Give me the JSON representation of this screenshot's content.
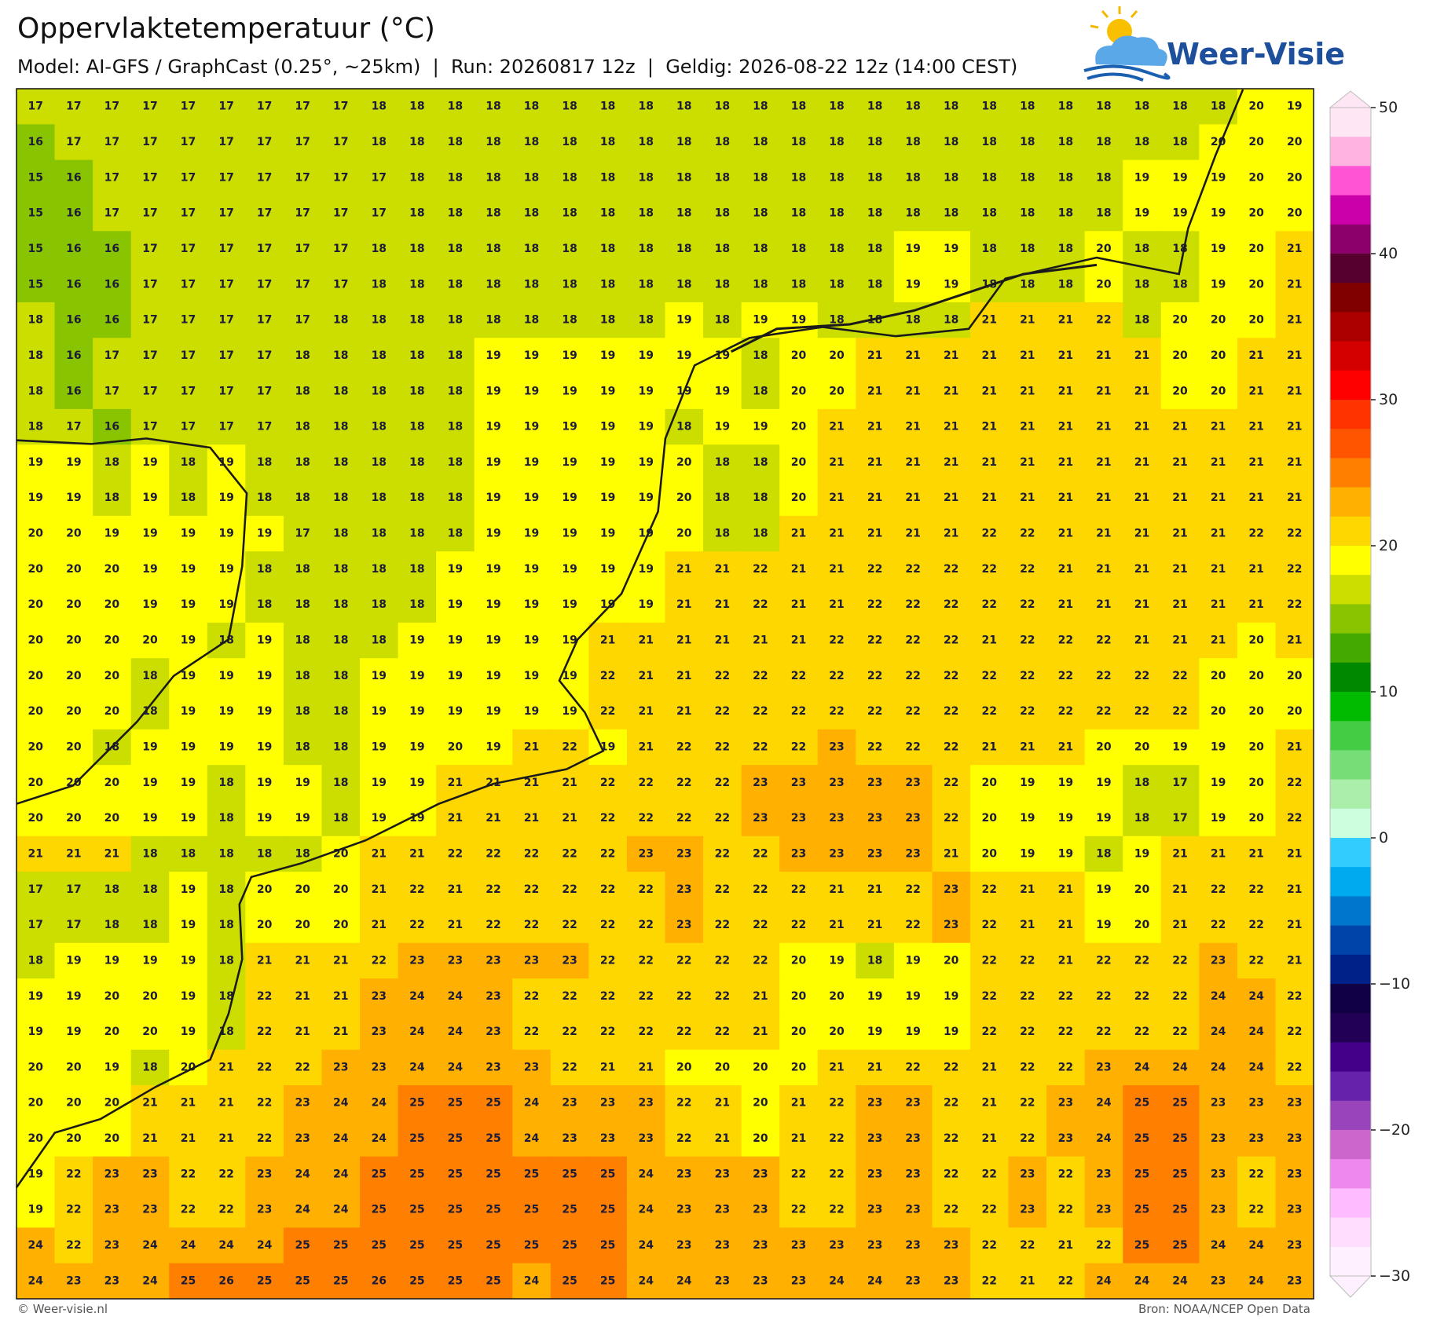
{
  "header": {
    "title": "Oppervlaktetemperatuur (°C)",
    "subtitle": "Model: AI-GFS / GraphCast (0.25°, ~25km)  |  Run: 20260817 12z  |  Geldig: 2026-08-22 12z (14:00 CEST)"
  },
  "logo": {
    "text": "Weer-Visie"
  },
  "footer": {
    "left": "© Weer-visie.nl",
    "right": "Bron: NOAA/NCEP Open Data"
  },
  "colorbar": {
    "lim": [
      -30,
      50
    ],
    "ticks": [
      50,
      40,
      30,
      20,
      10,
      0,
      {
        "value": -10,
        "label": "−10"
      },
      {
        "value": -20,
        "label": "−20"
      },
      {
        "value": -30,
        "label": "−30"
      }
    ],
    "colors": [
      "#ffe6f5",
      "#ffb3e0",
      "#ff55d4",
      "#cc00aa",
      "#8b006b",
      "#55002f",
      "#800000",
      "#aa0000",
      "#d40000",
      "#ff0000",
      "#ff3300",
      "#ff5500",
      "#ff8000",
      "#ffb000",
      "#ffd700",
      "#ffff00",
      "#ccdd00",
      "#88c400",
      "#44aa00",
      "#008800",
      "#00bb00",
      "#44cc44",
      "#77dd77",
      "#aaeeaa",
      "#ccffdd",
      "#33ccff",
      "#00aaee",
      "#0077cc",
      "#0044aa",
      "#002288",
      "#110044",
      "#220055",
      "#440088",
      "#6622aa",
      "#9944bb",
      "#cc66cc",
      "#ee88ee",
      "#ffbbff",
      "#ffddff",
      "#fff0ff"
    ]
  },
  "map": {
    "values": [
      [
        17,
        17,
        17,
        17,
        17,
        17,
        17,
        17,
        17,
        18,
        18,
        18,
        18,
        18,
        18,
        18,
        18,
        18,
        18,
        18,
        18,
        18,
        18,
        18,
        18,
        18,
        18,
        18,
        18,
        18,
        18,
        18,
        20,
        19
      ],
      [
        16,
        17,
        17,
        17,
        17,
        17,
        17,
        17,
        17,
        18,
        18,
        18,
        18,
        18,
        18,
        18,
        18,
        18,
        18,
        18,
        18,
        18,
        18,
        18,
        18,
        18,
        18,
        18,
        18,
        18,
        18,
        20,
        20,
        20
      ],
      [
        15,
        16,
        17,
        17,
        17,
        17,
        17,
        17,
        17,
        17,
        18,
        18,
        18,
        18,
        18,
        18,
        18,
        18,
        18,
        18,
        18,
        18,
        18,
        18,
        18,
        18,
        18,
        18,
        18,
        19,
        19,
        19,
        20,
        20
      ],
      [
        15,
        16,
        17,
        17,
        17,
        17,
        17,
        17,
        17,
        17,
        18,
        18,
        18,
        18,
        18,
        18,
        18,
        18,
        18,
        18,
        18,
        18,
        18,
        18,
        18,
        18,
        18,
        18,
        18,
        19,
        19,
        19,
        20,
        20
      ],
      [
        15,
        16,
        16,
        17,
        17,
        17,
        17,
        17,
        17,
        18,
        18,
        18,
        18,
        18,
        18,
        18,
        18,
        18,
        18,
        18,
        18,
        18,
        18,
        19,
        19,
        18,
        18,
        18,
        20,
        18,
        18,
        19,
        20,
        21
      ],
      [
        15,
        16,
        16,
        17,
        17,
        17,
        17,
        17,
        17,
        18,
        18,
        18,
        18,
        18,
        18,
        18,
        18,
        18,
        18,
        18,
        18,
        18,
        18,
        19,
        19,
        18,
        18,
        18,
        20,
        18,
        18,
        19,
        20,
        21
      ],
      [
        18,
        16,
        16,
        17,
        17,
        17,
        17,
        17,
        18,
        18,
        18,
        18,
        18,
        18,
        18,
        18,
        18,
        19,
        18,
        19,
        19,
        18,
        18,
        18,
        18,
        21,
        21,
        21,
        22,
        18,
        20,
        20,
        20,
        21
      ],
      [
        18,
        16,
        17,
        17,
        17,
        17,
        17,
        18,
        18,
        18,
        18,
        18,
        19,
        19,
        19,
        19,
        19,
        19,
        19,
        18,
        20,
        20,
        21,
        21,
        21,
        21,
        21,
        21,
        21,
        21,
        20,
        20,
        21,
        21
      ],
      [
        18,
        16,
        17,
        17,
        17,
        17,
        17,
        18,
        18,
        18,
        18,
        18,
        19,
        19,
        19,
        19,
        19,
        19,
        19,
        18,
        20,
        20,
        21,
        21,
        21,
        21,
        21,
        21,
        21,
        21,
        20,
        20,
        21,
        21
      ],
      [
        18,
        17,
        16,
        17,
        17,
        17,
        17,
        18,
        18,
        18,
        18,
        18,
        19,
        19,
        19,
        19,
        19,
        18,
        19,
        19,
        20,
        21,
        21,
        21,
        21,
        21,
        21,
        21,
        21,
        21,
        21,
        21,
        21,
        21
      ],
      [
        19,
        19,
        18,
        19,
        18,
        19,
        18,
        18,
        18,
        18,
        18,
        18,
        19,
        19,
        19,
        19,
        19,
        20,
        18,
        18,
        20,
        21,
        21,
        21,
        21,
        21,
        21,
        21,
        21,
        21,
        21,
        21,
        21,
        21
      ],
      [
        19,
        19,
        18,
        19,
        18,
        19,
        18,
        18,
        18,
        18,
        18,
        18,
        19,
        19,
        19,
        19,
        19,
        20,
        18,
        18,
        20,
        21,
        21,
        21,
        21,
        21,
        21,
        21,
        21,
        21,
        21,
        21,
        21,
        21
      ],
      [
        20,
        20,
        19,
        19,
        19,
        19,
        19,
        17,
        18,
        18,
        18,
        18,
        19,
        19,
        19,
        19,
        19,
        20,
        18,
        18,
        21,
        21,
        21,
        21,
        21,
        22,
        22,
        21,
        21,
        21,
        21,
        21,
        22,
        22
      ],
      [
        20,
        20,
        20,
        19,
        19,
        19,
        18,
        18,
        18,
        18,
        18,
        19,
        19,
        19,
        19,
        19,
        19,
        21,
        21,
        22,
        21,
        21,
        22,
        22,
        22,
        22,
        22,
        21,
        21,
        21,
        21,
        21,
        21,
        22
      ],
      [
        20,
        20,
        20,
        19,
        19,
        19,
        18,
        18,
        18,
        18,
        18,
        19,
        19,
        19,
        19,
        19,
        19,
        21,
        21,
        22,
        21,
        21,
        22,
        22,
        22,
        22,
        22,
        21,
        21,
        21,
        21,
        21,
        21,
        22
      ],
      [
        20,
        20,
        20,
        20,
        19,
        18,
        19,
        18,
        18,
        18,
        19,
        19,
        19,
        19,
        19,
        21,
        21,
        21,
        21,
        21,
        21,
        22,
        22,
        22,
        22,
        21,
        22,
        22,
        22,
        21,
        21,
        21,
        20,
        21
      ],
      [
        20,
        20,
        20,
        18,
        19,
        19,
        19,
        18,
        18,
        19,
        19,
        19,
        19,
        19,
        19,
        22,
        21,
        21,
        22,
        22,
        22,
        22,
        22,
        22,
        22,
        22,
        22,
        22,
        22,
        22,
        22,
        20,
        20,
        20
      ],
      [
        20,
        20,
        20,
        18,
        19,
        19,
        19,
        18,
        18,
        19,
        19,
        19,
        19,
        19,
        19,
        22,
        21,
        21,
        22,
        22,
        22,
        22,
        22,
        22,
        22,
        22,
        22,
        22,
        22,
        22,
        22,
        20,
        20,
        20
      ],
      [
        20,
        20,
        18,
        19,
        19,
        19,
        19,
        18,
        18,
        19,
        19,
        20,
        19,
        21,
        22,
        19,
        21,
        22,
        22,
        22,
        22,
        23,
        22,
        22,
        22,
        21,
        21,
        21,
        20,
        20,
        19,
        19,
        20,
        21
      ],
      [
        20,
        20,
        20,
        19,
        19,
        18,
        19,
        19,
        18,
        19,
        19,
        21,
        21,
        21,
        21,
        22,
        22,
        22,
        22,
        23,
        23,
        23,
        23,
        23,
        22,
        20,
        19,
        19,
        19,
        18,
        17,
        19,
        20,
        22
      ],
      [
        20,
        20,
        20,
        19,
        19,
        18,
        19,
        19,
        18,
        19,
        19,
        21,
        21,
        21,
        21,
        22,
        22,
        22,
        22,
        23,
        23,
        23,
        23,
        23,
        22,
        20,
        19,
        19,
        19,
        18,
        17,
        19,
        20,
        22
      ],
      [
        21,
        21,
        21,
        18,
        18,
        18,
        18,
        18,
        20,
        21,
        21,
        22,
        22,
        22,
        22,
        22,
        23,
        23,
        22,
        22,
        23,
        23,
        23,
        23,
        21,
        20,
        19,
        19,
        18,
        19,
        21,
        21,
        21,
        21
      ],
      [
        17,
        17,
        18,
        18,
        19,
        18,
        20,
        20,
        20,
        21,
        22,
        21,
        22,
        22,
        22,
        22,
        22,
        23,
        22,
        22,
        22,
        21,
        21,
        22,
        23,
        22,
        21,
        21,
        19,
        20,
        21,
        22,
        22,
        21
      ],
      [
        17,
        17,
        18,
        18,
        19,
        18,
        20,
        20,
        20,
        21,
        22,
        21,
        22,
        22,
        22,
        22,
        22,
        23,
        22,
        22,
        22,
        21,
        21,
        22,
        23,
        22,
        21,
        21,
        19,
        20,
        21,
        22,
        22,
        21
      ],
      [
        18,
        19,
        19,
        19,
        19,
        18,
        21,
        21,
        21,
        22,
        23,
        23,
        23,
        23,
        23,
        22,
        22,
        22,
        22,
        22,
        20,
        19,
        18,
        19,
        20,
        22,
        22,
        21,
        22,
        22,
        22,
        23,
        22,
        21
      ],
      [
        19,
        19,
        20,
        20,
        19,
        18,
        22,
        21,
        21,
        23,
        24,
        24,
        23,
        22,
        22,
        22,
        22,
        22,
        22,
        21,
        20,
        20,
        19,
        19,
        19,
        22,
        22,
        22,
        22,
        22,
        22,
        24,
        24,
        22
      ],
      [
        19,
        19,
        20,
        20,
        19,
        18,
        22,
        21,
        21,
        23,
        24,
        24,
        23,
        22,
        22,
        22,
        22,
        22,
        22,
        21,
        20,
        20,
        19,
        19,
        19,
        22,
        22,
        22,
        22,
        22,
        22,
        24,
        24,
        22
      ],
      [
        20,
        20,
        19,
        18,
        20,
        21,
        22,
        22,
        23,
        23,
        24,
        24,
        23,
        23,
        22,
        21,
        21,
        20,
        20,
        20,
        20,
        21,
        21,
        22,
        22,
        21,
        22,
        22,
        23,
        24,
        24,
        24,
        24,
        22
      ],
      [
        20,
        20,
        20,
        21,
        21,
        21,
        22,
        23,
        24,
        24,
        25,
        25,
        25,
        24,
        23,
        23,
        23,
        22,
        21,
        20,
        21,
        22,
        23,
        23,
        22,
        21,
        22,
        23,
        24,
        25,
        25,
        23,
        23,
        23
      ],
      [
        20,
        20,
        20,
        21,
        21,
        21,
        22,
        23,
        24,
        24,
        25,
        25,
        25,
        24,
        23,
        23,
        23,
        22,
        21,
        20,
        21,
        22,
        23,
        23,
        22,
        21,
        22,
        23,
        24,
        25,
        25,
        23,
        23,
        23
      ],
      [
        19,
        22,
        23,
        23,
        22,
        22,
        23,
        24,
        24,
        25,
        25,
        25,
        25,
        25,
        25,
        25,
        24,
        23,
        23,
        23,
        22,
        22,
        23,
        23,
        22,
        22,
        23,
        22,
        23,
        25,
        25,
        23,
        22,
        23
      ],
      [
        19,
        22,
        23,
        23,
        22,
        22,
        23,
        24,
        24,
        25,
        25,
        25,
        25,
        25,
        25,
        25,
        24,
        23,
        23,
        23,
        22,
        22,
        23,
        23,
        22,
        22,
        23,
        22,
        23,
        25,
        25,
        23,
        22,
        23
      ],
      [
        24,
        22,
        23,
        24,
        24,
        24,
        24,
        25,
        25,
        25,
        25,
        25,
        25,
        25,
        25,
        25,
        24,
        23,
        23,
        23,
        23,
        23,
        23,
        23,
        23,
        22,
        22,
        21,
        22,
        25,
        25,
        24,
        24,
        23
      ],
      [
        24,
        23,
        23,
        24,
        25,
        26,
        25,
        25,
        25,
        26,
        25,
        25,
        25,
        24,
        25,
        25,
        24,
        24,
        23,
        23,
        23,
        24,
        24,
        23,
        23,
        22,
        21,
        22,
        24,
        24,
        24,
        23,
        24,
        23
      ]
    ]
  }
}
